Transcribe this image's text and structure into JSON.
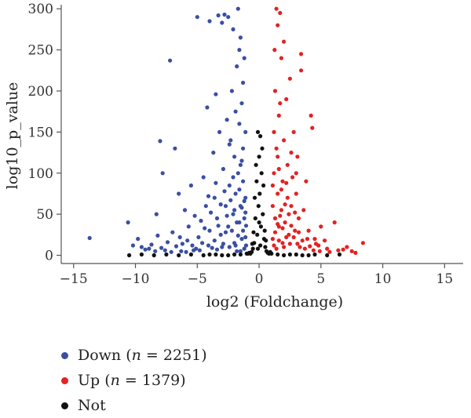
{
  "chart_data": {
    "type": "scatter",
    "title": "",
    "xlabel": "log2 (Foldchange)",
    "ylabel": "log10_p_value",
    "xlim": [
      -16,
      16.5
    ],
    "ylim": [
      -10,
      305
    ],
    "xticks": [
      -15,
      -10,
      -5,
      0,
      5,
      10,
      15
    ],
    "yticks": [
      0,
      50,
      100,
      150,
      200,
      250,
      300
    ],
    "grid": false,
    "legend_position": "bottom-left",
    "series": [
      {
        "name": "Down",
        "count": 2251,
        "color": "#3a4fa3",
        "points": [
          [
            -13.7,
            21
          ],
          [
            -10.6,
            40
          ],
          [
            -10.2,
            12
          ],
          [
            -9.8,
            20
          ],
          [
            -9.5,
            10
          ],
          [
            -8.9,
            8
          ],
          [
            -8.3,
            50
          ],
          [
            -8.2,
            24
          ],
          [
            -8.0,
            139
          ],
          [
            -7.8,
            100
          ],
          [
            -7.6,
            6
          ],
          [
            -7.2,
            237
          ],
          [
            -7.0,
            28
          ],
          [
            -6.8,
            130
          ],
          [
            -6.5,
            75
          ],
          [
            -6.3,
            5
          ],
          [
            -6.0,
            55
          ],
          [
            -5.8,
            18
          ],
          [
            -5.5,
            85
          ],
          [
            -5.3,
            6
          ],
          [
            -5.1,
            8
          ],
          [
            -5.0,
            290
          ],
          [
            -4.7,
            42
          ],
          [
            -4.5,
            95
          ],
          [
            -4.3,
            60
          ],
          [
            -4.2,
            180
          ],
          [
            -4.0,
            30
          ],
          [
            -4.0,
            285
          ],
          [
            -3.8,
            9
          ],
          [
            -3.7,
            125
          ],
          [
            -3.6,
            70
          ],
          [
            -3.5,
            196
          ],
          [
            -3.4,
            45
          ],
          [
            -3.3,
            292
          ],
          [
            -3.2,
            150
          ],
          [
            -3.1,
            25
          ],
          [
            -3.0,
            283
          ],
          [
            -3.0,
            10
          ],
          [
            -2.9,
            105
          ],
          [
            -2.8,
            293
          ],
          [
            -2.7,
            60
          ],
          [
            -2.6,
            165
          ],
          [
            -2.5,
            35
          ],
          [
            -2.5,
            290
          ],
          [
            -2.4,
            85
          ],
          [
            -2.3,
            140
          ],
          [
            -2.2,
            200
          ],
          [
            -2.1,
            50
          ],
          [
            -2.1,
            275
          ],
          [
            -2.0,
            120
          ],
          [
            -2.0,
            15
          ],
          [
            -1.9,
            75
          ],
          [
            -1.8,
            230
          ],
          [
            -1.8,
            5
          ],
          [
            -1.7,
            300
          ],
          [
            -1.7,
            100
          ],
          [
            -1.6,
            40
          ],
          [
            -1.6,
            160
          ],
          [
            -1.5,
            265
          ],
          [
            -1.5,
            60
          ],
          [
            -1.4,
            185
          ],
          [
            -1.4,
            20
          ],
          [
            -1.3,
            130
          ],
          [
            -1.3,
            90
          ],
          [
            -1.2,
            45
          ],
          [
            -1.2,
            8
          ],
          [
            -1.1,
            150
          ],
          [
            -1.1,
            70
          ],
          [
            -9.2,
            7
          ],
          [
            -8.7,
            13
          ],
          [
            -8.4,
            5
          ],
          [
            -7.9,
            9
          ],
          [
            -7.4,
            16
          ],
          [
            -7.1,
            4
          ],
          [
            -6.7,
            11
          ],
          [
            -6.4,
            22
          ],
          [
            -6.2,
            14
          ],
          [
            -5.9,
            4
          ],
          [
            -5.7,
            35
          ],
          [
            -5.4,
            12
          ],
          [
            -5.2,
            48
          ],
          [
            -4.9,
            22
          ],
          [
            -4.8,
            6
          ],
          [
            -4.6,
            15
          ],
          [
            -4.4,
            33
          ],
          [
            -4.1,
            12
          ],
          [
            -3.9,
            52
          ],
          [
            -3.6,
            18
          ],
          [
            -3.4,
            7
          ],
          [
            -3.3,
            36
          ],
          [
            -3.1,
            62
          ],
          [
            -2.9,
            14
          ],
          [
            -2.7,
            28
          ],
          [
            -2.6,
            48
          ],
          [
            -2.4,
            10
          ],
          [
            -2.3,
            67
          ],
          [
            -2.2,
            30
          ],
          [
            -2.0,
            55
          ],
          [
            -1.9,
            12
          ],
          [
            -1.8,
            40
          ],
          [
            -1.7,
            24
          ],
          [
            -1.6,
            80
          ],
          [
            -1.5,
            5
          ],
          [
            -1.4,
            58
          ],
          [
            -1.3,
            30
          ],
          [
            -1.2,
            66
          ],
          [
            -1.1,
            22
          ],
          [
            -1.1,
            52
          ],
          [
            -1.05,
            36
          ],
          [
            -1.05,
            12
          ],
          [
            -1.5,
            110
          ],
          [
            -2.1,
            95
          ],
          [
            -2.8,
            78
          ],
          [
            -3.5,
            88
          ],
          [
            -4.1,
            72
          ],
          [
            -1.3,
            210
          ],
          [
            -1.9,
            175
          ],
          [
            -2.4,
            135
          ],
          [
            -1.6,
            250
          ],
          [
            -1.2,
            240
          ],
          [
            -1.4,
            115
          ]
        ]
      },
      {
        "name": "Up",
        "count": 1379,
        "color": "#e32222",
        "points": [
          [
            1.1,
            20
          ],
          [
            1.1,
            60
          ],
          [
            1.2,
            100
          ],
          [
            1.2,
            150
          ],
          [
            1.3,
            45
          ],
          [
            1.3,
            200
          ],
          [
            1.4,
            8
          ],
          [
            1.4,
            300
          ],
          [
            1.5,
            75
          ],
          [
            1.5,
            120
          ],
          [
            1.6,
            35
          ],
          [
            1.6,
            170
          ],
          [
            1.7,
            295
          ],
          [
            1.8,
            55
          ],
          [
            1.8,
            240
          ],
          [
            1.9,
            90
          ],
          [
            1.9,
            15
          ],
          [
            2.0,
            140
          ],
          [
            2.0,
            260
          ],
          [
            2.1,
            40
          ],
          [
            2.2,
            190
          ],
          [
            2.3,
            70
          ],
          [
            2.3,
            110
          ],
          [
            2.4,
            25
          ],
          [
            2.5,
            215
          ],
          [
            2.6,
            60
          ],
          [
            2.7,
            95
          ],
          [
            2.8,
            150
          ],
          [
            2.9,
            30
          ],
          [
            3.0,
            75
          ],
          [
            3.1,
            120
          ],
          [
            3.2,
            45
          ],
          [
            3.3,
            10
          ],
          [
            3.4,
            245
          ],
          [
            3.4,
            225
          ],
          [
            3.6,
            55
          ],
          [
            3.8,
            90
          ],
          [
            4.0,
            30
          ],
          [
            4.2,
            170
          ],
          [
            4.3,
            155
          ],
          [
            4.5,
            20
          ],
          [
            4.8,
            12
          ],
          [
            5.0,
            35
          ],
          [
            5.5,
            8
          ],
          [
            6.1,
            40
          ],
          [
            6.8,
            7
          ],
          [
            7.5,
            5
          ],
          [
            8.4,
            15
          ],
          [
            1.2,
            12
          ],
          [
            1.3,
            28
          ],
          [
            1.5,
            38
          ],
          [
            1.6,
            18
          ],
          [
            1.7,
            48
          ],
          [
            1.9,
            33
          ],
          [
            2.0,
            10
          ],
          [
            2.1,
            62
          ],
          [
            2.2,
            22
          ],
          [
            2.4,
            50
          ],
          [
            2.5,
            14
          ],
          [
            2.6,
            36
          ],
          [
            2.8,
            22
          ],
          [
            2.9,
            52
          ],
          [
            3.1,
            14
          ],
          [
            3.2,
            28
          ],
          [
            3.5,
            18
          ],
          [
            3.7,
            8
          ],
          [
            3.9,
            20
          ],
          [
            4.1,
            11
          ],
          [
            4.4,
            6
          ],
          [
            4.6,
            14
          ],
          [
            4.9,
            5
          ],
          [
            5.3,
            18
          ],
          [
            5.7,
            4
          ],
          [
            6.4,
            6
          ],
          [
            7.1,
            10
          ],
          [
            7.8,
            3
          ],
          [
            1.1,
            85
          ],
          [
            1.4,
            130
          ],
          [
            1.6,
            105
          ],
          [
            1.8,
            80
          ],
          [
            2.2,
            88
          ],
          [
            1.25,
            250
          ],
          [
            1.5,
            280
          ],
          [
            1.7,
            185
          ],
          [
            2.6,
            125
          ],
          [
            3.0,
            100
          ]
        ]
      },
      {
        "name": "Not",
        "color": "#111111",
        "points": [
          [
            -0.1,
            150
          ],
          [
            0.1,
            145
          ],
          [
            0.0,
            120
          ],
          [
            0.2,
            100
          ],
          [
            -0.2,
            90
          ],
          [
            0.05,
            75
          ],
          [
            -0.05,
            60
          ],
          [
            0.3,
            50
          ],
          [
            -0.3,
            45
          ],
          [
            0.15,
            35
          ],
          [
            -0.15,
            25
          ],
          [
            0.4,
            20
          ],
          [
            -0.4,
            15
          ],
          [
            0.5,
            10
          ],
          [
            -0.5,
            8
          ],
          [
            0.6,
            5
          ],
          [
            -0.6,
            4
          ],
          [
            0.7,
            3
          ],
          [
            -0.7,
            2
          ],
          [
            0.8,
            2
          ],
          [
            -0.8,
            3
          ],
          [
            0.9,
            4
          ],
          [
            -0.9,
            2
          ],
          [
            0.25,
            130
          ],
          [
            -0.25,
            110
          ],
          [
            0.35,
            85
          ],
          [
            -0.35,
            70
          ],
          [
            0.45,
            30
          ],
          [
            -0.45,
            28
          ],
          [
            0.55,
            18
          ],
          [
            -0.55,
            14
          ],
          [
            0.0,
            40
          ],
          [
            0.1,
            12
          ],
          [
            -0.1,
            8
          ],
          [
            1.5,
            1
          ],
          [
            2.5,
            1
          ],
          [
            3.5,
            0
          ],
          [
            4.5,
            1
          ],
          [
            5.5,
            0
          ],
          [
            6.5,
            1
          ],
          [
            -1.5,
            1
          ],
          [
            -2.5,
            0
          ],
          [
            -3.5,
            1
          ],
          [
            -4.5,
            0
          ],
          [
            -5.5,
            1
          ],
          [
            -6.5,
            0
          ],
          [
            -7.5,
            1
          ],
          [
            -8.5,
            0
          ],
          [
            -9.5,
            1
          ],
          [
            -10.5,
            0
          ],
          [
            1.0,
            2
          ],
          [
            -1.0,
            2
          ],
          [
            2.0,
            0
          ],
          [
            -2.0,
            1
          ],
          [
            3.0,
            1
          ],
          [
            -3.0,
            0
          ],
          [
            4.0,
            0
          ],
          [
            -4.0,
            1
          ]
        ]
      }
    ]
  }
}
